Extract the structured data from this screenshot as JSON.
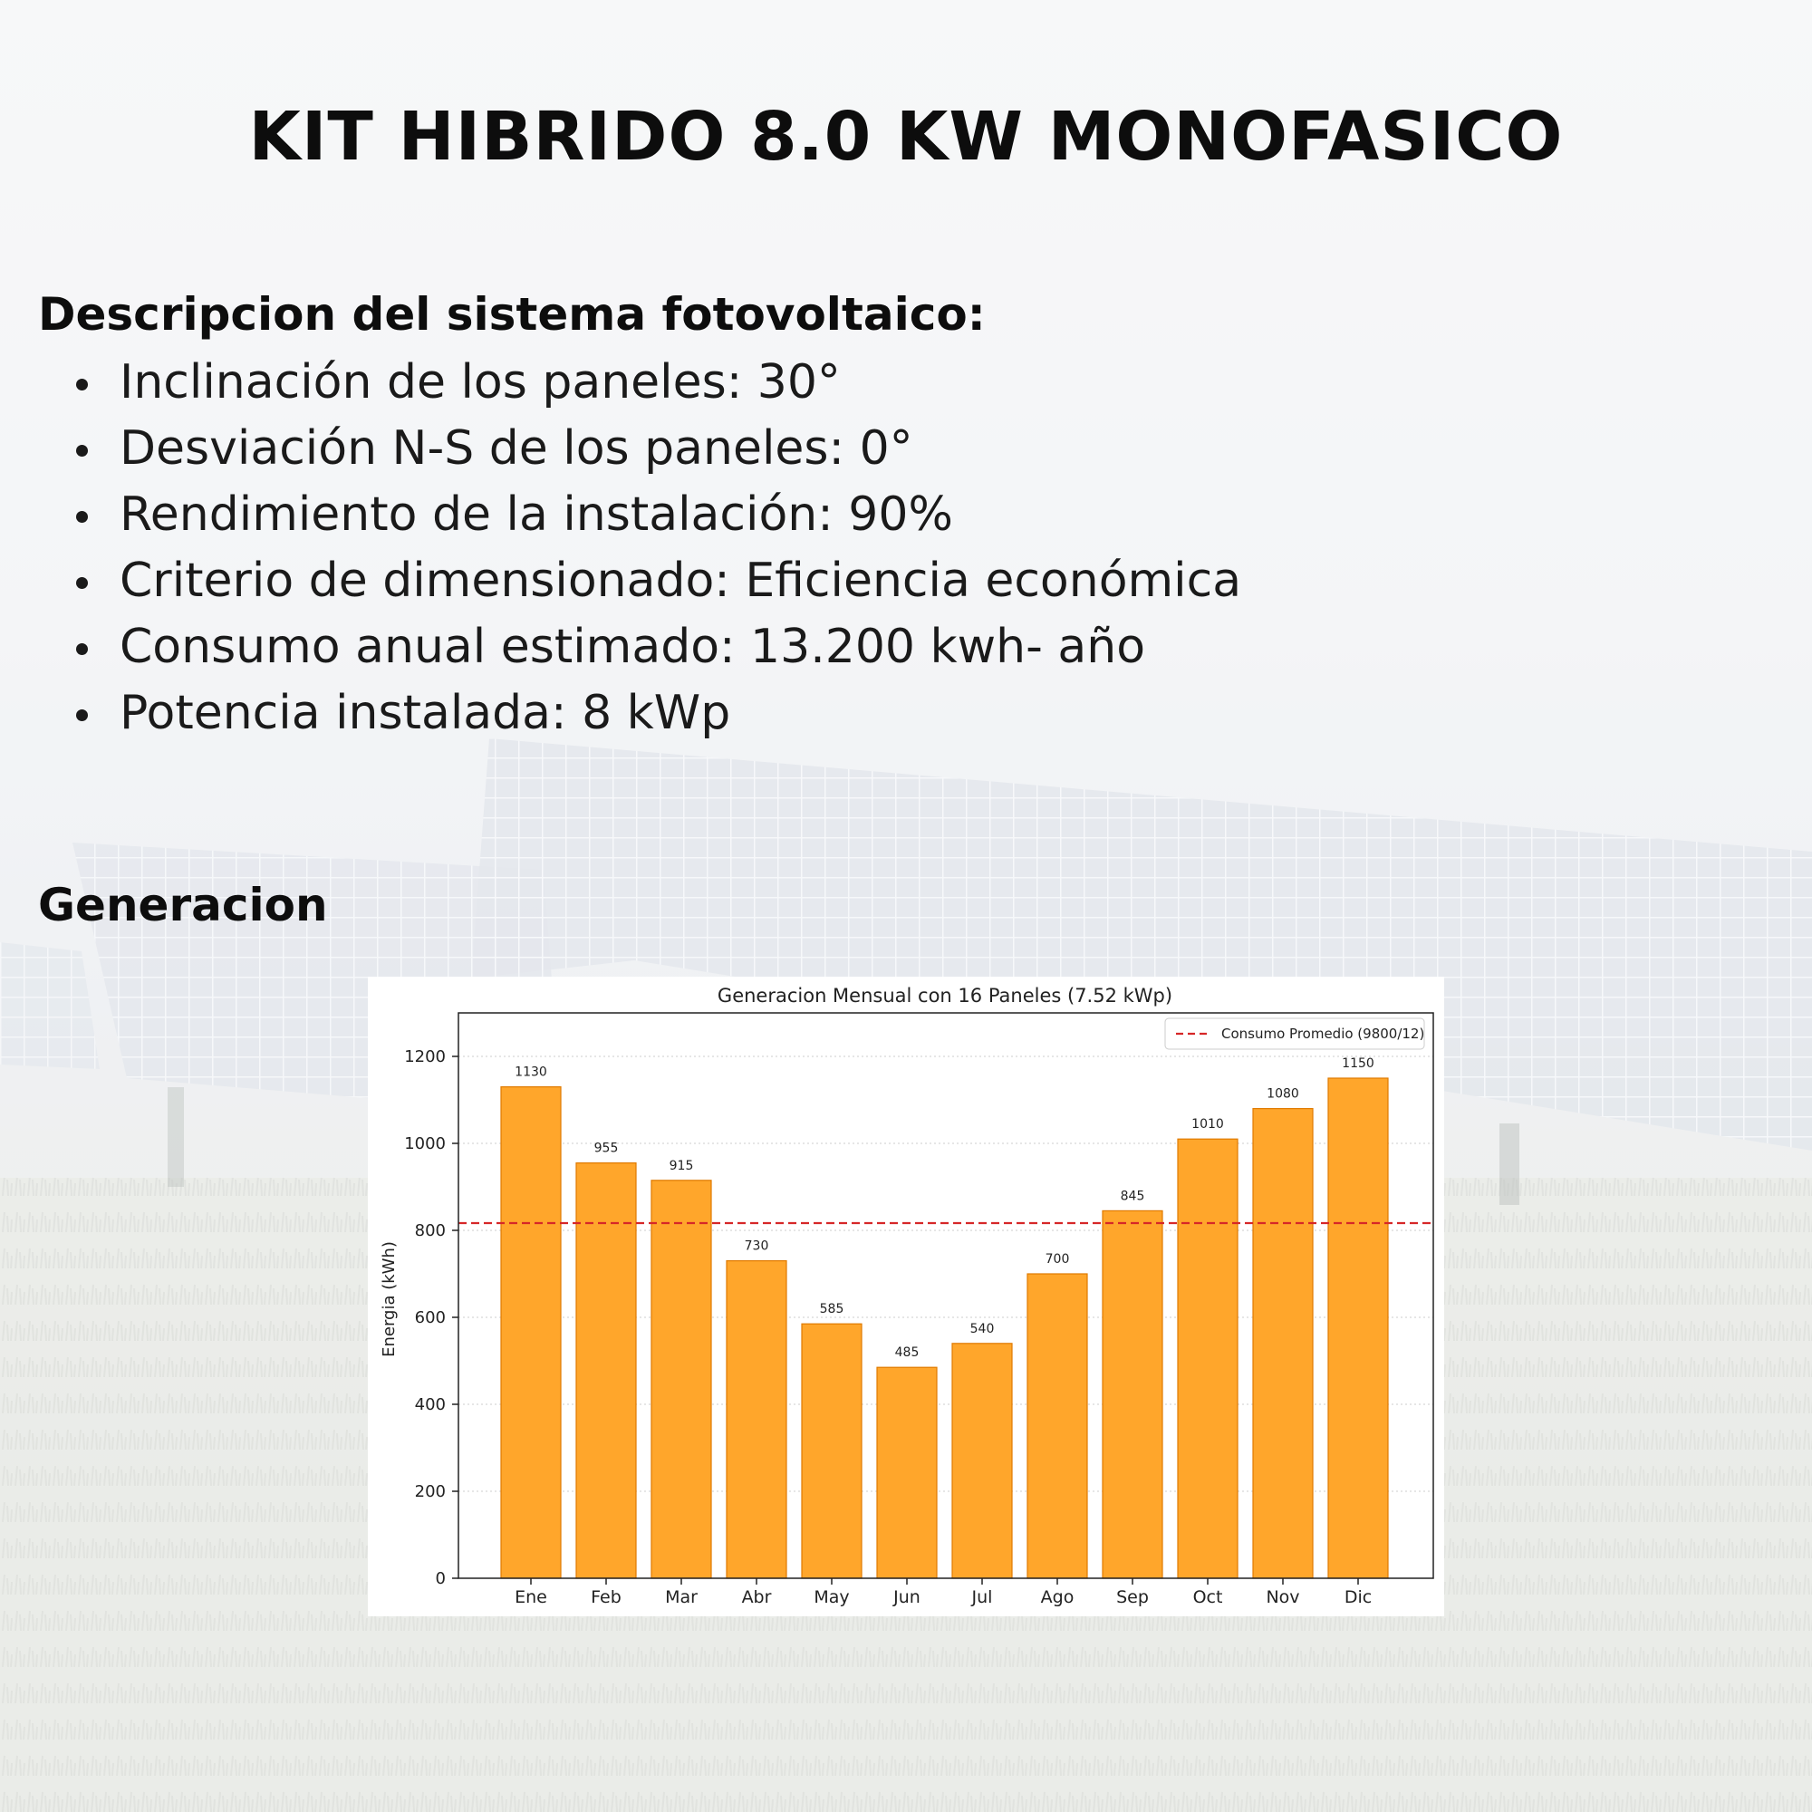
{
  "header": {
    "title": "KIT HIBRIDO 8.0 KW MONOFASICO"
  },
  "description": {
    "heading": "Descripcion del sistema fotovoltaico:",
    "items": [
      "Inclinación de los paneles:  30°",
      "Desviación N-S de los paneles: 0°",
      "Rendimiento de la instalación: 90%",
      "Criterio de dimensionado: Eficiencia económica",
      "Consumo anual estimado: 13.200 kwh- año",
      "Potencia instalada: 8 kWp"
    ]
  },
  "generation": {
    "heading": "Generacion"
  },
  "colors": {
    "bar_fill": "#FFA62B",
    "bar_stroke": "#E07A00",
    "reference_line": "#D62728"
  },
  "chart_data": {
    "type": "bar",
    "title": "Generacion Mensual con 16 Paneles (7.52 kWp)",
    "xlabel": "",
    "ylabel": "Energia (kWh)",
    "categories": [
      "Ene",
      "Feb",
      "Mar",
      "Abr",
      "May",
      "Jun",
      "Jul",
      "Ago",
      "Sep",
      "Oct",
      "Nov",
      "Dic"
    ],
    "values": [
      1130,
      955,
      915,
      730,
      585,
      485,
      540,
      700,
      845,
      1010,
      1080,
      1150
    ],
    "value_labels": [
      "1130",
      "955",
      "915",
      "730",
      "585",
      "485",
      "540",
      "700",
      "845",
      "1010",
      "1080",
      "1150"
    ],
    "ylim": [
      0,
      1300
    ],
    "yticks": [
      0,
      200,
      400,
      600,
      800,
      1000,
      1200
    ],
    "ytick_labels": [
      "0",
      "200",
      "400",
      "600",
      "800",
      "1000",
      "1200"
    ],
    "grid": "horizontal dotted",
    "reference_line": {
      "label": "Consumo Promedio (9800/12)",
      "value": 816.7,
      "style": "dashed"
    },
    "legend_position": "top-right"
  }
}
